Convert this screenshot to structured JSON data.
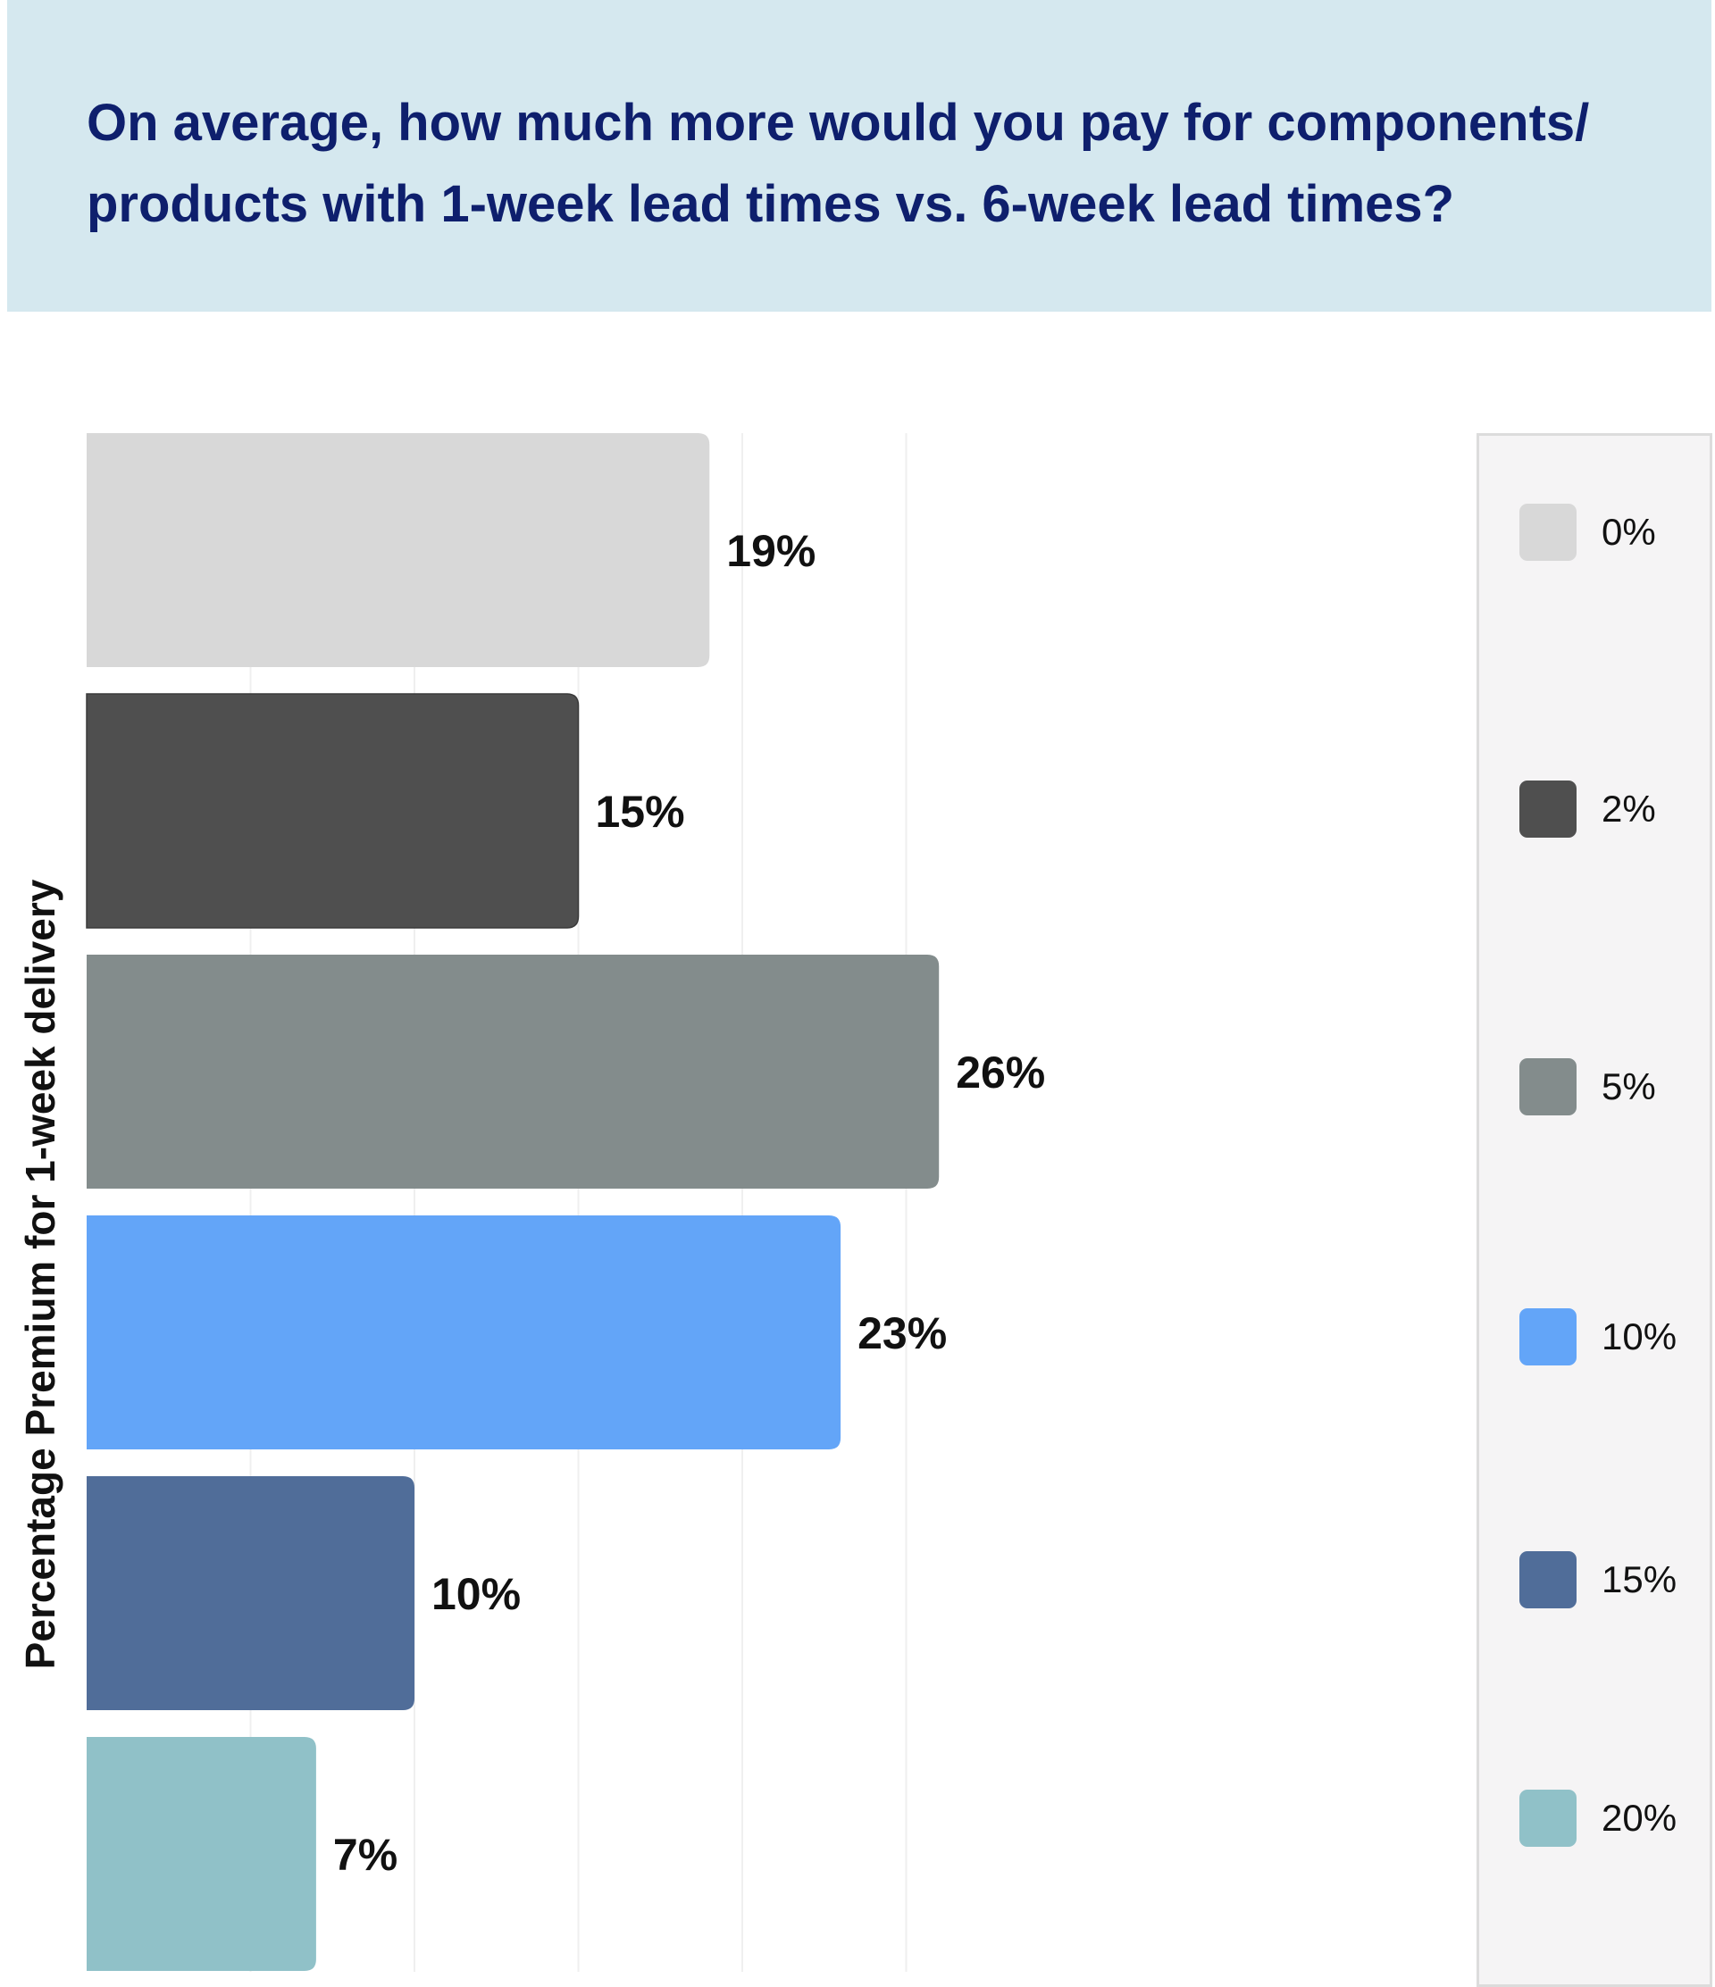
{
  "title": "On average, how much more would you pay for components/ products with 1-week lead times vs. 6-week lead times?",
  "chart_data": {
    "type": "bar",
    "orientation": "horizontal",
    "title": "On average, how much more would you pay for components/ products with 1-week lead times vs. 6-week lead times?",
    "ylabel": "Percentage Premium for 1-week delivery",
    "xlabel": "",
    "xlim": [
      0,
      28
    ],
    "grid": true,
    "legend_position": "right",
    "categories": [
      "0%",
      "2%",
      "5%",
      "10%",
      "15%",
      "20%"
    ],
    "values": [
      19,
      15,
      26,
      23,
      10,
      7
    ],
    "data_labels": [
      "19%",
      "15%",
      "26%",
      "23%",
      "10%",
      "7%"
    ],
    "colors": [
      "#d8d8d8",
      "#4f4f4f",
      "#838c8c",
      "#63a5f8",
      "#506d99",
      "#90c1c8"
    ]
  }
}
